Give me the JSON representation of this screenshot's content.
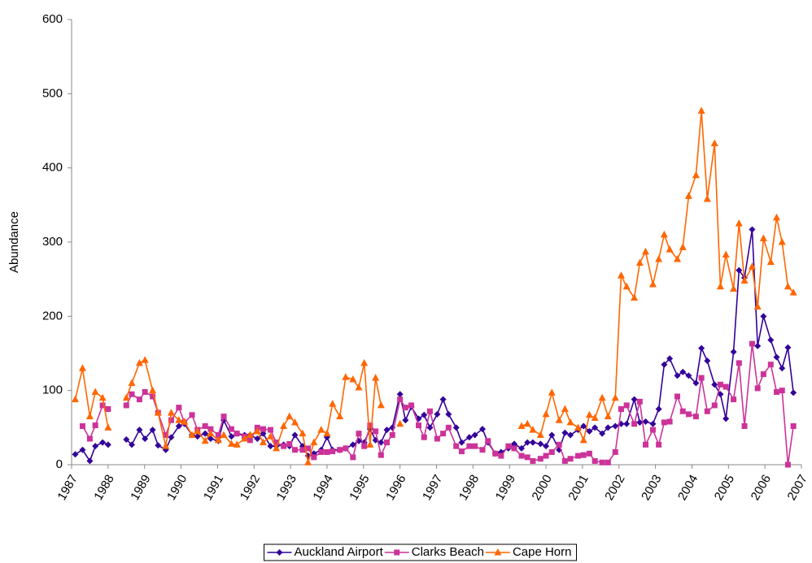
{
  "chart_data": {
    "type": "line",
    "y_label": "Abundance",
    "x": [
      1987.1,
      1987.3,
      1987.5,
      1987.65,
      1987.85,
      1988.0,
      1988.25,
      1988.5,
      1988.65,
      1988.86,
      1989.01,
      1989.22,
      1989.37,
      1989.58,
      1989.73,
      1989.94,
      1990.09,
      1990.3,
      1990.45,
      1990.66,
      1990.81,
      1991.02,
      1991.17,
      1991.38,
      1991.53,
      1991.74,
      1991.89,
      1992.09,
      1992.25,
      1992.45,
      1992.61,
      1992.81,
      1992.97,
      1993.12,
      1993.33,
      1993.48,
      1993.64,
      1993.84,
      1994.0,
      1994.15,
      1994.35,
      1994.51,
      1994.71,
      1994.87,
      1995.02,
      1995.18,
      1995.33,
      1995.48,
      1995.64,
      1995.79,
      1996.0,
      1996.15,
      1996.31,
      1996.51,
      1996.66,
      1996.82,
      1997.02,
      1997.18,
      1997.33,
      1997.54,
      1997.69,
      1997.9,
      1998.05,
      1998.26,
      1998.41,
      1998.61,
      1998.77,
      1998.97,
      1999.13,
      1999.33,
      1999.49,
      1999.64,
      1999.85,
      2000.0,
      2000.16,
      2000.36,
      2000.52,
      2000.67,
      2000.88,
      2001.03,
      2001.19,
      2001.34,
      2001.54,
      2001.7,
      2001.9,
      2002.06,
      2002.21,
      2002.42,
      2002.57,
      2002.73,
      2002.93,
      2003.09,
      2003.24,
      2003.39,
      2003.6,
      2003.75,
      2003.91,
      2004.11,
      2004.26,
      2004.42,
      2004.62,
      2004.78,
      2004.93,
      2005.14,
      2005.29,
      2005.44,
      2005.65,
      2005.8,
      2005.96,
      2006.16,
      2006.32,
      2006.47,
      2006.63,
      2006.78
    ],
    "series": [
      {
        "name": "Auckland Airport",
        "color": "#330099",
        "marker": "diamond",
        "values": [
          14,
          20,
          5,
          25,
          30,
          27,
          null,
          34,
          27,
          47,
          35,
          47,
          26,
          20,
          37,
          52,
          55,
          40,
          38,
          42,
          35,
          32,
          60,
          38,
          42,
          40,
          40,
          35,
          42,
          25,
          25,
          27,
          25,
          40,
          25,
          12,
          15,
          20,
          37,
          20,
          20,
          22,
          27,
          32,
          30,
          48,
          33,
          30,
          47,
          50,
          95,
          60,
          78,
          62,
          67,
          50,
          68,
          88,
          68,
          50,
          30,
          37,
          40,
          48,
          30,
          15,
          17,
          22,
          28,
          22,
          30,
          30,
          28,
          25,
          40,
          20,
          43,
          40,
          47,
          52,
          45,
          50,
          42,
          50,
          52,
          55,
          55,
          88,
          57,
          58,
          55,
          75,
          135,
          143,
          120,
          125,
          120,
          110,
          157,
          140,
          108,
          95,
          62,
          152,
          262,
          252,
          317,
          160,
          200,
          168,
          145,
          130,
          158,
          97
        ]
      },
      {
        "name": "Clarks Beach",
        "color": "#cc3399",
        "marker": "square",
        "values": [
          null,
          52,
          35,
          53,
          80,
          75,
          null,
          80,
          95,
          88,
          98,
          92,
          70,
          40,
          60,
          77,
          57,
          67,
          47,
          52,
          48,
          40,
          65,
          48,
          42,
          38,
          33,
          50,
          48,
          47,
          30,
          25,
          28,
          20,
          20,
          22,
          10,
          17,
          17,
          18,
          20,
          22,
          10,
          42,
          25,
          53,
          45,
          13,
          30,
          40,
          88,
          77,
          80,
          53,
          37,
          72,
          35,
          42,
          50,
          25,
          18,
          25,
          25,
          20,
          32,
          15,
          12,
          25,
          22,
          12,
          10,
          5,
          8,
          12,
          17,
          27,
          5,
          8,
          12,
          13,
          15,
          5,
          3,
          3,
          17,
          75,
          80,
          55,
          85,
          27,
          47,
          27,
          57,
          58,
          92,
          72,
          68,
          65,
          117,
          72,
          80,
          108,
          105,
          88,
          137,
          52,
          163,
          103,
          122,
          135,
          98,
          100,
          0,
          52
        ]
      },
      {
        "name": "Cape Horn",
        "color": "#ff6600",
        "marker": "triangle",
        "values": [
          88,
          130,
          65,
          98,
          90,
          50,
          null,
          90,
          110,
          137,
          141,
          100,
          70,
          25,
          70,
          60,
          58,
          40,
          45,
          32,
          42,
          33,
          40,
          28,
          27,
          35,
          40,
          45,
          30,
          38,
          22,
          52,
          65,
          57,
          42,
          3,
          30,
          47,
          42,
          82,
          65,
          118,
          115,
          104,
          137,
          27,
          117,
          80,
          null,
          null,
          55,
          null,
          null,
          null,
          null,
          null,
          null,
          null,
          null,
          null,
          null,
          null,
          null,
          null,
          null,
          null,
          null,
          null,
          null,
          52,
          55,
          47,
          40,
          68,
          97,
          60,
          75,
          57,
          50,
          33,
          67,
          63,
          90,
          65,
          90,
          255,
          240,
          225,
          272,
          287,
          243,
          277,
          310,
          290,
          277,
          293,
          362,
          390,
          477,
          358,
          433,
          240,
          283,
          237,
          325,
          248,
          267,
          213,
          305,
          273,
          333,
          300,
          240,
          232
        ]
      }
    ],
    "xlim": [
      1987,
      2007
    ],
    "xticks": [
      1987,
      1988,
      1989,
      1990,
      1991,
      1992,
      1993,
      1994,
      1995,
      1996,
      1997,
      1998,
      1999,
      2000,
      2001,
      2002,
      2003,
      2004,
      2005,
      2006,
      2007
    ],
    "ylim": [
      0,
      600
    ],
    "yticks": [
      0,
      100,
      200,
      300,
      400,
      500,
      600
    ],
    "legend": "bottom"
  }
}
